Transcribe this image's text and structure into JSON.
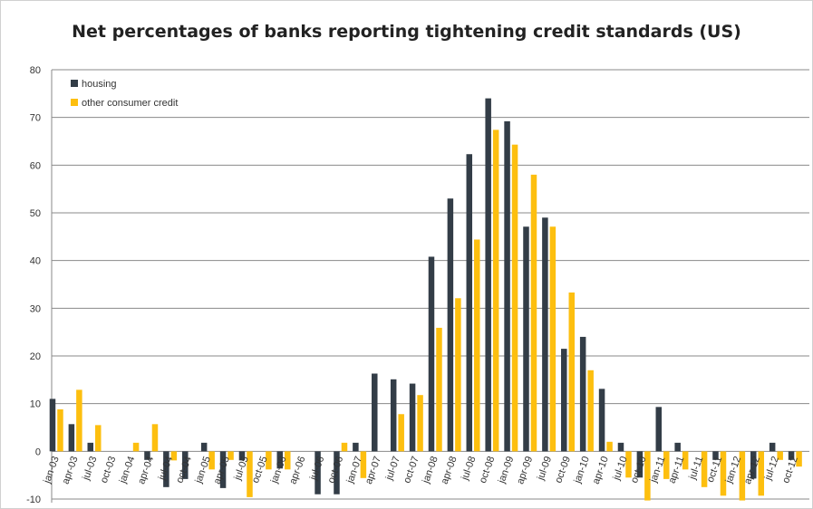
{
  "chart_data": {
    "type": "bar",
    "title": "Net percentages of banks reporting tightening credit standards (US)",
    "xlabel": "",
    "ylabel": "",
    "ylim": [
      -10,
      80
    ],
    "yticks": [
      -10,
      0,
      10,
      20,
      30,
      40,
      50,
      60,
      70,
      80
    ],
    "grid": true,
    "legend_position": "top-left",
    "categories": [
      "jan-03",
      "apr-03",
      "jul-03",
      "oct-03",
      "jan-04",
      "apr-04",
      "jul-04",
      "oct-04",
      "jan-05",
      "apr-05",
      "jul-05",
      "oct-05",
      "jan-06",
      "apr-06",
      "jul-06",
      "oct-06",
      "jan-07",
      "apr-07",
      "jul-07",
      "oct-07",
      "jan-08",
      "apr-08",
      "jul-08",
      "oct-08",
      "jan-09",
      "apr-09",
      "jul-09",
      "oct-09",
      "jan-10",
      "apr-10",
      "jul-10",
      "oct-10",
      "jan-11",
      "apr-11",
      "jul-11",
      "oct-11",
      "jan-12",
      "apr-12",
      "jul-12",
      "oct-12"
    ],
    "series": [
      {
        "name": "housing",
        "color": "#333d47",
        "values": [
          11,
          5.7,
          1.8,
          0,
          0,
          -1.8,
          -7.5,
          -5.8,
          1.8,
          -7.7,
          -1.9,
          0,
          -3.6,
          0,
          -9,
          -9,
          1.8,
          16.3,
          15.1,
          14.2,
          40.8,
          53,
          62.3,
          74,
          69.2,
          47.1,
          49,
          21.5,
          24,
          13.1,
          1.8,
          -5.5,
          9.3,
          1.8,
          0,
          -1.8,
          0,
          -5.7,
          1.8,
          -1.8
        ]
      },
      {
        "name": "other consumer credit",
        "color": "#fdbf0f",
        "values": [
          8.8,
          12.9,
          5.5,
          0,
          1.8,
          5.7,
          -1.9,
          0,
          -3.8,
          -1.8,
          -9.6,
          -3.8,
          -3.8,
          0,
          0,
          1.8,
          -5.6,
          0,
          7.8,
          11.8,
          25.9,
          32.1,
          44.4,
          67.4,
          64.3,
          58,
          47.1,
          33.3,
          17,
          2,
          -5.5,
          -10.3,
          -5.8,
          -3.8,
          -7.5,
          -9.3,
          -10.3,
          -9.3,
          -1.8,
          -3.2
        ]
      }
    ]
  }
}
